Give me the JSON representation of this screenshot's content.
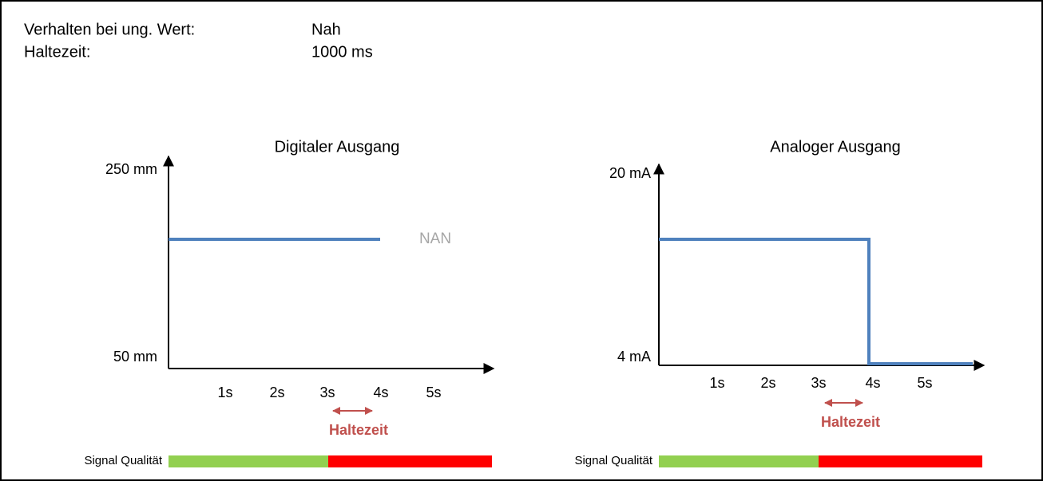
{
  "header": {
    "rows": [
      {
        "label": "Verhalten bei ung. Wert:",
        "value": "Nah"
      },
      {
        "label": "Haltezeit:",
        "value": "1000 ms"
      }
    ]
  },
  "panels": [
    {
      "title": "Digitaler Ausgang",
      "y_top": "250 mm",
      "y_bottom": "50 mm",
      "x_ticks": [
        "1s",
        "2s",
        "3s",
        "4s",
        "5s"
      ],
      "annotation": "NAN",
      "hold_label": "Haltezeit",
      "signal_label": "Signal Qualität"
    },
    {
      "title": "Analoger Ausgang",
      "y_top": "20 mA",
      "y_bottom": "4 mA",
      "x_ticks": [
        "1s",
        "2s",
        "3s",
        "4s",
        "5s"
      ],
      "hold_label": "Haltezeit",
      "signal_label": "Signal Qualität"
    }
  ]
}
